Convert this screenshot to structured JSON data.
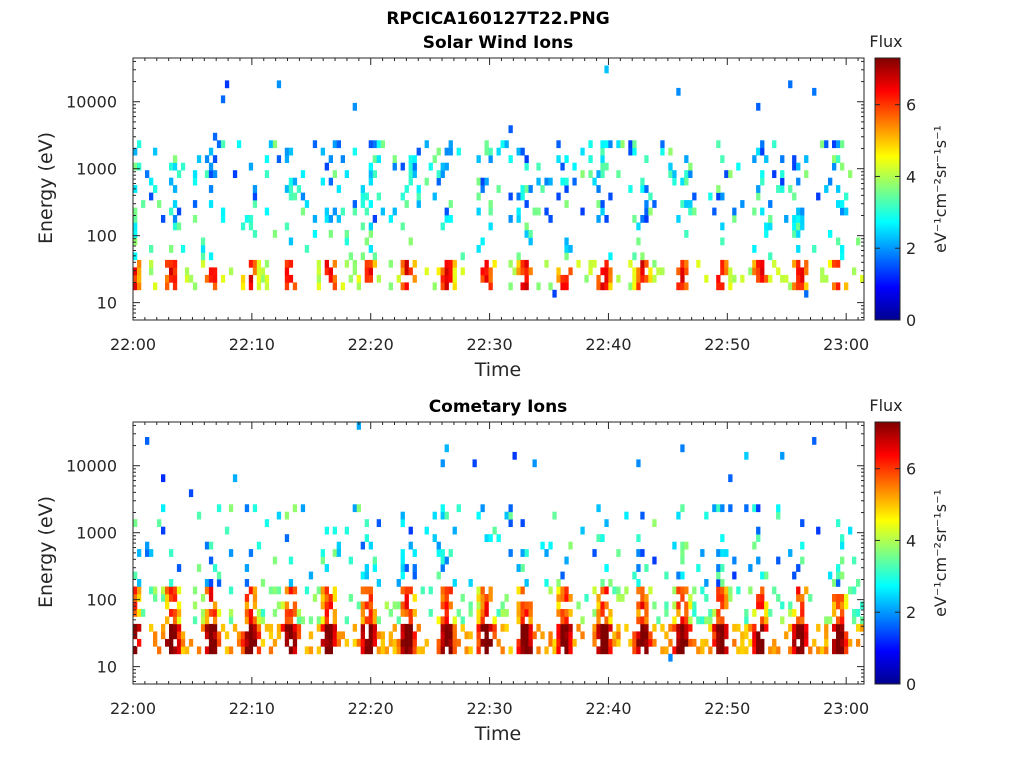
{
  "figure_title": "RPCICA160127T22.PNG",
  "chart_data": [
    {
      "type": "heatmap",
      "title": "Solar Wind Ions",
      "xlabel": "Time",
      "ylabel": "Energy (eV)",
      "y_scale": "log",
      "ylim": [
        5.5,
        45000
      ],
      "x_ticks": [
        "22:00",
        "22:10",
        "22:20",
        "22:30",
        "22:40",
        "22:50",
        "23:00"
      ],
      "xlim": [
        "22:00",
        "23:01:30"
      ],
      "y_ticks": [
        10,
        100,
        1000,
        10000
      ],
      "y_tick_labels": [
        "10",
        "100",
        "1000",
        "10000"
      ],
      "colorbar": {
        "title": "Flux",
        "label": "eV⁻¹cm⁻²sr⁻¹s⁻¹",
        "range": [
          0,
          7.3
        ],
        "ticks": [
          "0",
          "2",
          "4",
          "6"
        ],
        "colormap": "jet"
      },
      "main_band": {
        "energy_range_eV": [
          15,
          45
        ],
        "peak_flux": 7
      },
      "upper_band": {
        "energy_range_eV": [
          150,
          2500
        ],
        "typical_flux": 2.5
      },
      "pulse_period_min": 3.3
    },
    {
      "type": "heatmap",
      "title": "Cometary Ions",
      "xlabel": "Time",
      "ylabel": "Energy (eV)",
      "y_scale": "log",
      "ylim": [
        5.5,
        45000
      ],
      "x_ticks": [
        "22:00",
        "22:10",
        "22:20",
        "22:30",
        "22:40",
        "22:50",
        "23:00"
      ],
      "xlim": [
        "22:00",
        "23:01:30"
      ],
      "y_ticks": [
        10,
        100,
        1000,
        10000
      ],
      "y_tick_labels": [
        "10",
        "100",
        "1000",
        "10000"
      ],
      "colorbar": {
        "title": "Flux",
        "label": "eV⁻¹cm⁻²sr⁻¹s⁻¹",
        "range": [
          0,
          7.3
        ],
        "ticks": [
          "0",
          "2",
          "4",
          "6"
        ],
        "colormap": "jet"
      },
      "main_band": {
        "energy_range_eV": [
          15,
          45
        ],
        "peak_flux": 7.2
      },
      "upper_band": {
        "energy_range_eV": [
          60,
          1500
        ],
        "typical_flux": 4
      },
      "pulse_period_min": 3.3
    }
  ]
}
